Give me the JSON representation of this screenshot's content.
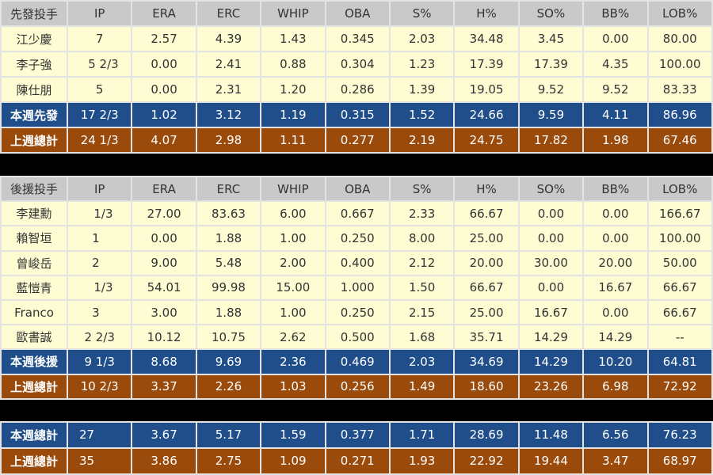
{
  "columns": [
    "IP",
    "ERA",
    "ERC",
    "WHIP",
    "OBA",
    "S%",
    "H%",
    "SO%",
    "BB%",
    "LOB%"
  ],
  "starters": {
    "header_label": "先發投手",
    "rows": [
      [
        "江少慶",
        "7",
        "2.57",
        "4.39",
        "1.43",
        "0.345",
        "2.03",
        "34.48",
        "3.45",
        "0.00",
        "80.00"
      ],
      [
        "李子強",
        "  5 2/3",
        "0.00",
        "2.41",
        "0.88",
        "0.304",
        "1.23",
        "17.39",
        "17.39",
        "4.35",
        "100.00"
      ],
      [
        "陳仕朋",
        "5",
        "0.00",
        "2.31",
        "1.20",
        "0.286",
        "1.39",
        "19.05",
        "9.52",
        "9.52",
        "83.33"
      ]
    ],
    "this_week": [
      "本週先發",
      "17 2/3",
      "1.02",
      "3.12",
      "1.19",
      "0.315",
      "1.52",
      "24.66",
      "9.59",
      "4.11",
      "86.96"
    ],
    "last_week": [
      "上週總計",
      "24 1/3",
      "4.07",
      "2.98",
      "1.11",
      "0.277",
      "2.19",
      "24.75",
      "17.82",
      "1.98",
      "67.46"
    ]
  },
  "relievers": {
    "header_label": "後援投手",
    "rows": [
      [
        "李建勳",
        "  1/3",
        "27.00",
        "83.63",
        "6.00",
        "0.667",
        "2.33",
        "66.67",
        "0.00",
        "0.00",
        "166.67"
      ],
      [
        "賴智垣",
        "1  ",
        "0.00",
        "1.88",
        "1.00",
        "0.250",
        "8.00",
        "25.00",
        "0.00",
        "0.00",
        "100.00"
      ],
      [
        "曾峻岳",
        "2  ",
        "9.00",
        "5.48",
        "2.00",
        "0.400",
        "2.12",
        "20.00",
        "30.00",
        "20.00",
        "50.00"
      ],
      [
        "藍愷青",
        "  1/3",
        "54.01",
        "99.98",
        "15.00",
        "1.000",
        "1.50",
        "66.67",
        "0.00",
        "16.67",
        "66.67"
      ],
      [
        "Franco",
        "3  ",
        "3.00",
        "1.88",
        "1.00",
        "0.250",
        "2.15",
        "25.00",
        "16.67",
        "0.00",
        "66.67"
      ],
      [
        "歐書誠",
        "2 2/3",
        "10.12",
        "10.75",
        "2.62",
        "0.500",
        "1.68",
        "35.71",
        "14.29",
        "14.29",
        "--"
      ]
    ],
    "this_week": [
      "本週後援",
      "9 1/3",
      "8.68",
      "9.69",
      "2.36",
      "0.469",
      "2.03",
      "34.69",
      "14.29",
      "10.20",
      "64.81"
    ],
    "last_week": [
      "上週總計",
      "10 2/3",
      "3.37",
      "2.26",
      "1.03",
      "0.256",
      "1.49",
      "18.60",
      "23.26",
      "6.98",
      "72.92"
    ]
  },
  "totals": {
    "this_week": [
      "本週總計",
      "27",
      "3.67",
      "5.17",
      "1.59",
      "0.377",
      "1.71",
      "28.69",
      "11.48",
      "6.56",
      "76.23"
    ],
    "last_week": [
      "上週總計",
      "35",
      "3.86",
      "2.75",
      "1.09",
      "0.271",
      "1.93",
      "22.92",
      "19.44",
      "3.47",
      "68.97"
    ]
  },
  "colors": {
    "header": "#c9c9c9",
    "row": "#fdfcd2",
    "this_week": "#1f4e8a",
    "last_week": "#9a4a0b"
  }
}
